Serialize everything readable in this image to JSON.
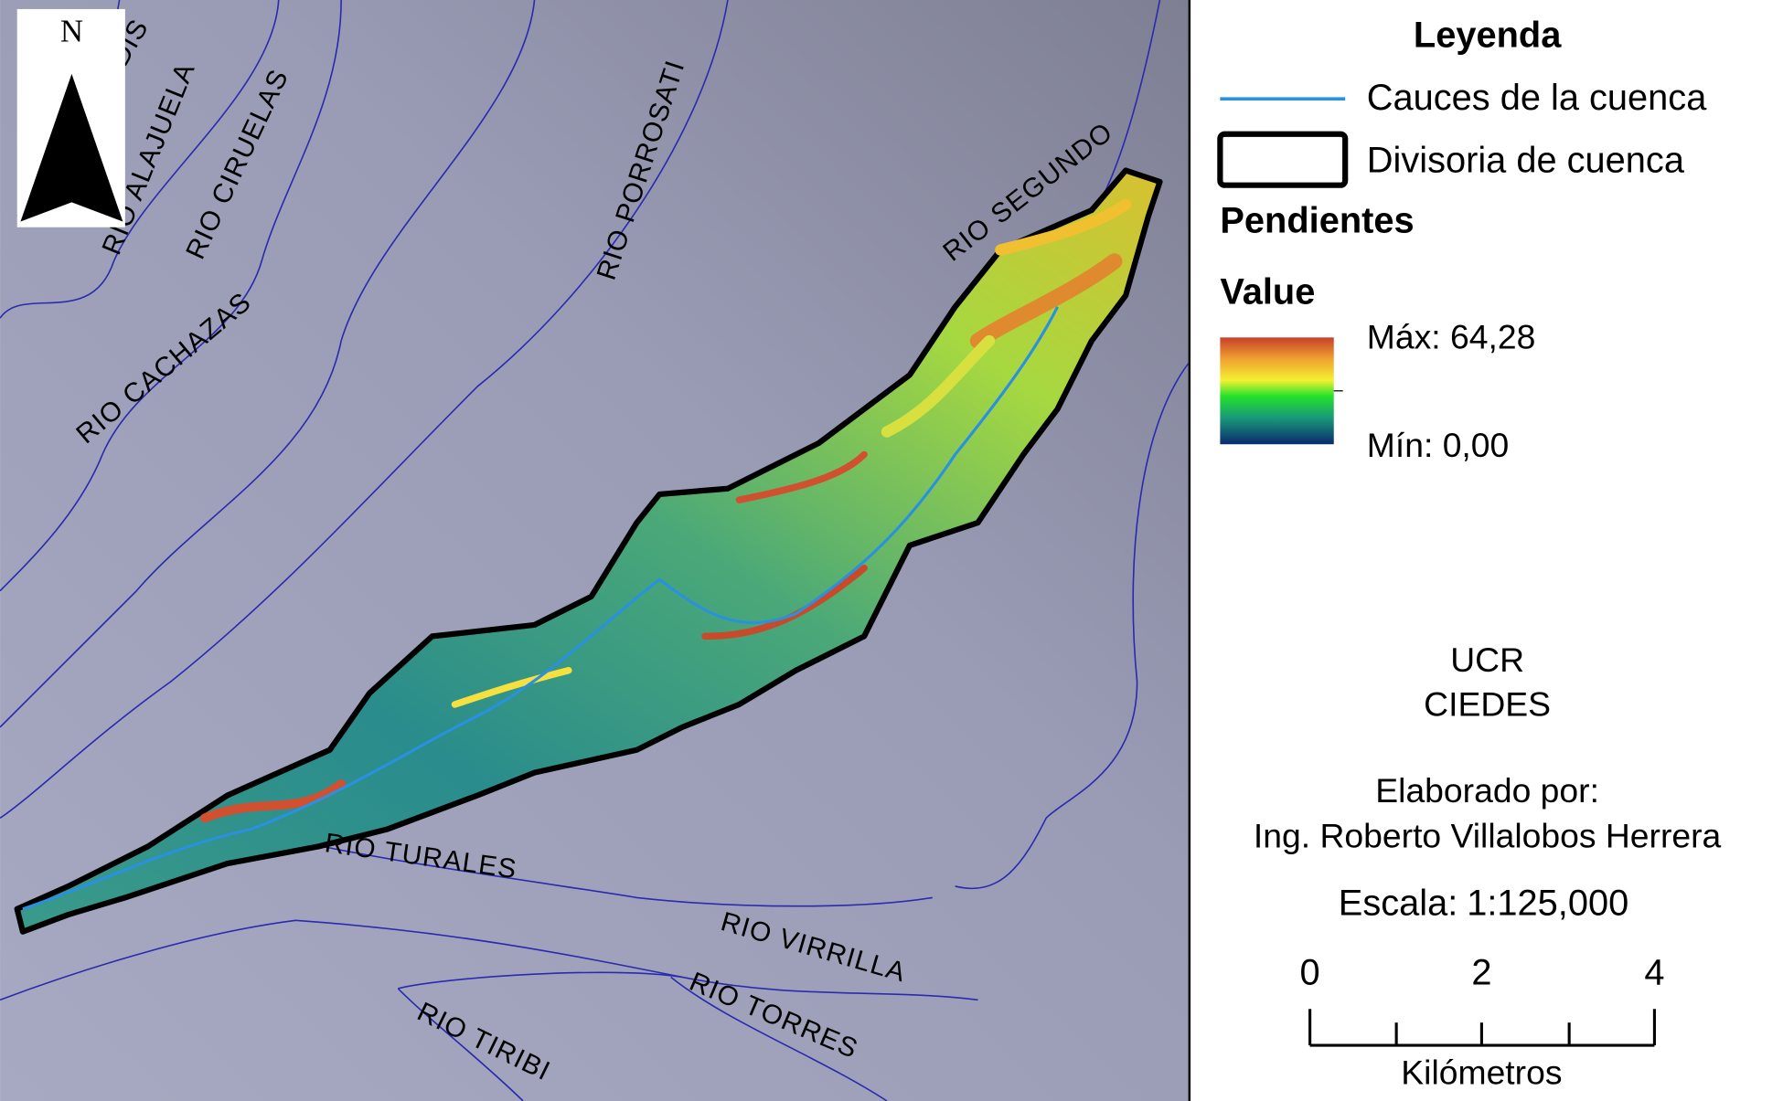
{
  "map": {
    "north": "N",
    "rivers": [
      "DIS",
      "RIO ALAJUELA",
      "RIO CIRUELAS",
      "RIO CACHAZAS",
      "RIO PORROSATI",
      "RIO SEGUNDO",
      "RIO TURALES",
      "RIO VIRRILLA",
      "RIO TORRES",
      "RIO TIRIBI"
    ]
  },
  "legend": {
    "title": "Leyenda",
    "streams": "Cauces de la cuenca",
    "divide": "Divisoria de cuenca",
    "slopes": "Pendientes",
    "value": "Value",
    "max": "Máx: 64,28",
    "min": "Mín: 0,00"
  },
  "credits": {
    "org1": "UCR",
    "org2": "CIEDES",
    "made_by": "Elaborado por:",
    "author": "Ing. Roberto Villalobos Herrera"
  },
  "scale": {
    "label": "Escala:",
    "ratio": "1:125,000",
    "ticks": [
      "0",
      "2",
      "4"
    ],
    "unit": "Kilómetros"
  }
}
